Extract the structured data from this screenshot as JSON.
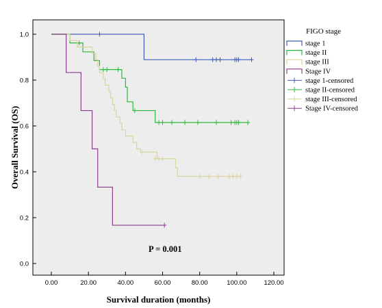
{
  "chart_data": {
    "type": "line",
    "subtype": "kaplan-meier-step",
    "xlabel": "Survival duration (months)",
    "ylabel": "Overall Survival (OS)",
    "xlim": [
      0,
      120
    ],
    "ylim": [
      0,
      1.0
    ],
    "xticks": [
      "0.00",
      "20.00",
      "40.00",
      "60.00",
      "80.00",
      "100.00",
      "120.00"
    ],
    "yticks": [
      "0.0",
      "0.2",
      "0.4",
      "0.6",
      "0.8",
      "1.0"
    ],
    "xtick_values": [
      0,
      20,
      40,
      60,
      80,
      100,
      120
    ],
    "ytick_values": [
      0,
      0.2,
      0.4,
      0.6,
      0.8,
      1.0
    ],
    "grid": false,
    "plot_background": "#ededed",
    "legend_title": "FIGO stage",
    "legend_position": "right",
    "legend": [
      {
        "label": "stage 1",
        "color": "#3f5fb5",
        "kind": "line"
      },
      {
        "label": "stage II",
        "color": "#2cb83a",
        "kind": "line"
      },
      {
        "label": "stage III",
        "color": "#d9d49a",
        "kind": "line"
      },
      {
        "label": "Stage IV",
        "color": "#8c3d8c",
        "kind": "line"
      },
      {
        "label": "stage 1-censored",
        "color": "#3f5fb5",
        "kind": "censor"
      },
      {
        "label": "stage II-censored",
        "color": "#2cb83a",
        "kind": "censor"
      },
      {
        "label": "stage III-censored",
        "color": "#d9d49a",
        "kind": "censor"
      },
      {
        "label": "Stage IV-censored",
        "color": "#8c3d8c",
        "kind": "censor"
      }
    ],
    "annotation": "P = 0.001",
    "series": [
      {
        "name": "stage 1",
        "color": "#3f5fb5",
        "steps": [
          [
            0,
            1.0
          ],
          [
            50,
            0.889
          ],
          [
            108,
            0.889
          ]
        ],
        "censored": [
          [
            26,
            1.0
          ],
          [
            78,
            0.889
          ],
          [
            87,
            0.889
          ],
          [
            89,
            0.889
          ],
          [
            91,
            0.889
          ],
          [
            99,
            0.889
          ],
          [
            100,
            0.889
          ],
          [
            101,
            0.889
          ],
          [
            108,
            0.889
          ]
        ]
      },
      {
        "name": "stage II",
        "color": "#2cb83a",
        "steps": [
          [
            0,
            1.0
          ],
          [
            10,
            0.962
          ],
          [
            17,
            0.923
          ],
          [
            23,
            0.885
          ],
          [
            26,
            0.846
          ],
          [
            38,
            0.808
          ],
          [
            40,
            0.769
          ],
          [
            41,
            0.705
          ],
          [
            44,
            0.667
          ],
          [
            56,
            0.615
          ],
          [
            106,
            0.615
          ]
        ],
        "censored": [
          [
            15,
            0.962
          ],
          [
            28,
            0.846
          ],
          [
            30,
            0.846
          ],
          [
            36,
            0.846
          ],
          [
            45,
            0.667
          ],
          [
            58,
            0.615
          ],
          [
            60,
            0.615
          ],
          [
            65,
            0.615
          ],
          [
            72,
            0.615
          ],
          [
            79,
            0.615
          ],
          [
            89,
            0.615
          ],
          [
            97,
            0.615
          ],
          [
            99,
            0.615
          ],
          [
            100,
            0.615
          ],
          [
            101,
            0.615
          ],
          [
            106,
            0.615
          ]
        ]
      },
      {
        "name": "stage III",
        "color": "#d9d49a",
        "steps": [
          [
            0,
            1.0
          ],
          [
            10,
            0.972
          ],
          [
            14,
            0.944
          ],
          [
            22,
            0.917
          ],
          [
            24,
            0.889
          ],
          [
            25,
            0.861
          ],
          [
            26,
            0.833
          ],
          [
            28,
            0.806
          ],
          [
            29,
            0.778
          ],
          [
            31,
            0.75
          ],
          [
            32,
            0.722
          ],
          [
            33,
            0.694
          ],
          [
            34,
            0.667
          ],
          [
            35,
            0.639
          ],
          [
            37,
            0.611
          ],
          [
            38,
            0.583
          ],
          [
            40,
            0.556
          ],
          [
            44,
            0.528
          ],
          [
            46,
            0.5
          ],
          [
            48,
            0.486
          ],
          [
            57,
            0.457
          ],
          [
            67,
            0.418
          ],
          [
            68,
            0.38
          ],
          [
            102,
            0.38
          ]
        ],
        "censored": [
          [
            49,
            0.486
          ],
          [
            56,
            0.457
          ],
          [
            58,
            0.457
          ],
          [
            60,
            0.457
          ],
          [
            80,
            0.38
          ],
          [
            85,
            0.38
          ],
          [
            90,
            0.38
          ],
          [
            96,
            0.38
          ],
          [
            98,
            0.38
          ],
          [
            100,
            0.38
          ],
          [
            102,
            0.38
          ]
        ]
      },
      {
        "name": "Stage IV",
        "color": "#8c3d8c",
        "steps": [
          [
            0,
            1.0
          ],
          [
            8,
            0.833
          ],
          [
            16,
            0.667
          ],
          [
            22,
            0.5
          ],
          [
            25,
            0.333
          ],
          [
            33,
            0.167
          ],
          [
            61,
            0.167
          ]
        ],
        "censored": [
          [
            61,
            0.167
          ]
        ]
      }
    ]
  }
}
